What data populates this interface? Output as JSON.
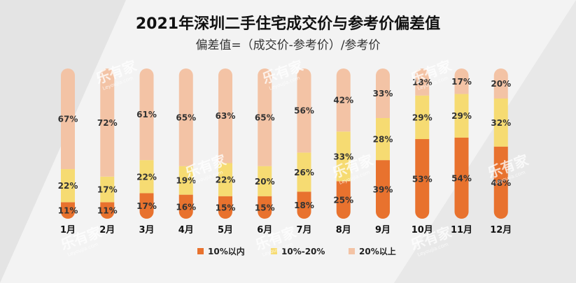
{
  "chart_data": {
    "type": "bar",
    "stacked": true,
    "orientation": "vertical",
    "title": "2021年深圳二手住宅成交价与参考价偏差值",
    "subtitle": "偏差值=（成交价-参考价）/参考价",
    "categories": [
      "1月",
      "2月",
      "3月",
      "4月",
      "5月",
      "6月",
      "7月",
      "8月",
      "9月",
      "10月",
      "11月",
      "12月"
    ],
    "series": [
      {
        "name": "10%以内",
        "color": "#e8722e",
        "values": [
          11,
          11,
          17,
          16,
          15,
          15,
          18,
          25,
          39,
          53,
          54,
          48
        ]
      },
      {
        "name": "10%-20%",
        "color": "#f6db72",
        "values": [
          22,
          17,
          22,
          19,
          22,
          20,
          26,
          33,
          28,
          29,
          29,
          32
        ]
      },
      {
        "name": "20%以上",
        "color": "#f3c3a5",
        "values": [
          67,
          72,
          61,
          65,
          63,
          65,
          56,
          42,
          33,
          18,
          17,
          20
        ]
      }
    ],
    "value_suffix": "%",
    "legend_position": "bottom",
    "ylim": [
      0,
      100
    ],
    "grid": false
  },
  "watermark": {
    "text": "乐有家",
    "subtext": "Leyoujia.com"
  }
}
